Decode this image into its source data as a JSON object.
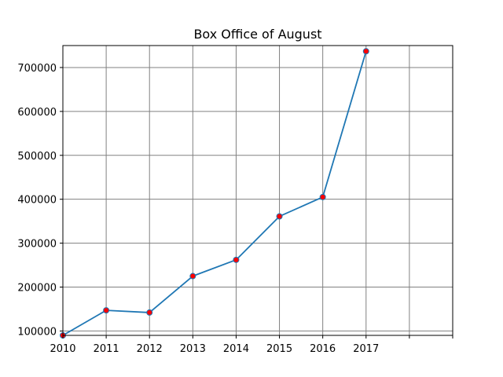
{
  "chart_data": {
    "type": "line",
    "title": "Box Office of August",
    "xlabel": "",
    "ylabel": "",
    "x": [
      2010,
      2011,
      2012,
      2013,
      2014,
      2015,
      2016,
      2017
    ],
    "series": [
      {
        "values": [
          90000,
          147000,
          142000,
          225000,
          262000,
          361000,
          405000,
          737000
        ]
      }
    ],
    "xlim": [
      2010,
      2019
    ],
    "ylim": [
      90000,
      750000
    ],
    "x_ticks": [
      2010,
      2011,
      2012,
      2013,
      2014,
      2015,
      2016,
      2017,
      2018,
      2019
    ],
    "x_tick_labels": [
      "2010",
      "2011",
      "2012",
      "2013",
      "2014",
      "2015",
      "2016",
      "2017",
      "",
      ""
    ],
    "y_ticks": [
      100000,
      200000,
      300000,
      400000,
      500000,
      600000,
      700000
    ],
    "y_tick_labels": [
      "100000",
      "200000",
      "300000",
      "400000",
      "500000",
      "600000",
      "700000"
    ],
    "grid": true,
    "colors": {
      "line": "#1f77b4",
      "marker_fill": "#ff0000",
      "marker_edge": "#1f77b4",
      "grid": "#808080"
    }
  }
}
